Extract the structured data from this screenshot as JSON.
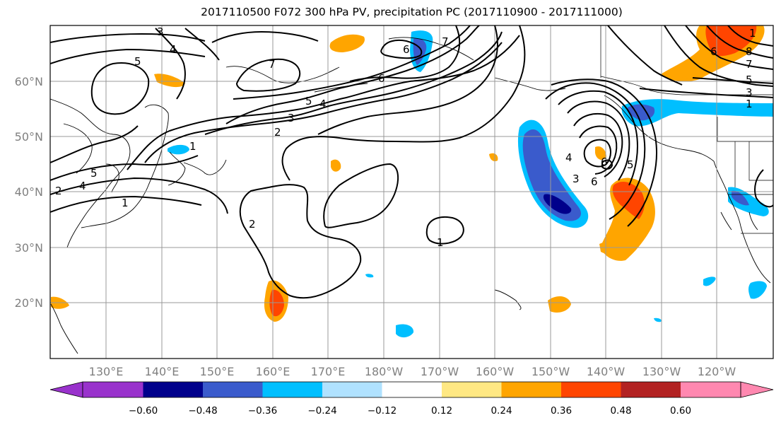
{
  "title": "2017110500 F072 300 hPa PV, precipitation PC (2017110900 - 2017111000)",
  "lat_labels": [
    "60°N",
    "50°N",
    "40°N",
    "30°N",
    "20°N"
  ],
  "lon_labels": [
    "130°E",
    "140°E",
    "150°E",
    "160°E",
    "170°E",
    "180°W",
    "170°W",
    "160°W",
    "150°W",
    "140°W",
    "130°W",
    "120°W"
  ],
  "colorbar": {
    "colors": [
      "#9932cc",
      "#00008b",
      "#3a5bcc",
      "#00bfff",
      "#b0e2ff",
      "#ffffff",
      "#ffe883",
      "#ffa500",
      "#ff4500",
      "#b22222",
      "#ff88b0"
    ],
    "tick_labels": [
      "−0.60",
      "−0.48",
      "−0.36",
      "−0.24",
      "−0.12",
      "0.12",
      "0.24",
      "0.36",
      "0.48",
      "0.60"
    ]
  },
  "contour_labels": [
    "3",
    "4",
    "5",
    "7",
    "6",
    "7",
    "5",
    "4",
    "3",
    "2",
    "1",
    "6",
    "5",
    "4",
    "2",
    "1",
    "4",
    "3",
    "6",
    "6",
    "5",
    "6",
    "5",
    "3",
    "1",
    "8",
    "7",
    "2",
    "1",
    "1"
  ]
}
